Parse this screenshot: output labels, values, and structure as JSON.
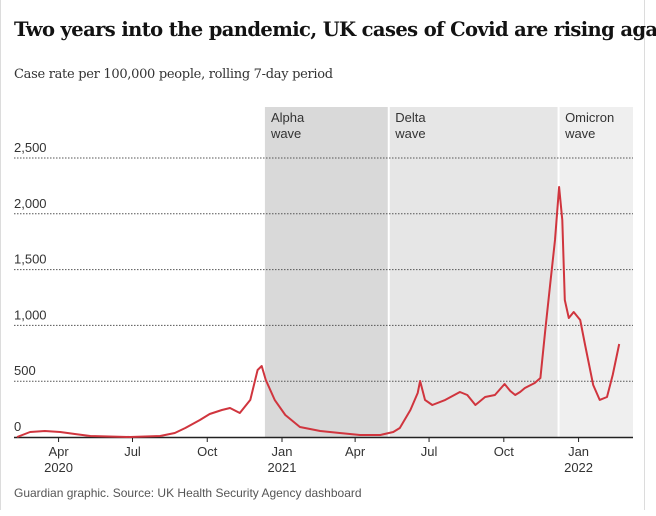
{
  "chart_data": {
    "type": "line",
    "title": "Two years into the pandemic, UK cases of Covid are rising again",
    "subtitle": "Case rate per 100,000 people, rolling 7-day period",
    "source": "Guardian graphic. Source: UK Health Security Agency dashboard",
    "x_unit": "days relative to 1 Jan 2021",
    "ylim": [
      0,
      2600
    ],
    "y_ticks": [
      {
        "value": 0,
        "label": "0"
      },
      {
        "value": 500,
        "label": "500"
      },
      {
        "value": 1000,
        "label": "1,000"
      },
      {
        "value": 1500,
        "label": "1,500"
      },
      {
        "value": 2000,
        "label": "2,000"
      },
      {
        "value": 2500,
        "label": "2,500"
      }
    ],
    "x_ticks": [
      {
        "day": -275,
        "label": "Apr",
        "year": "2020"
      },
      {
        "day": -184,
        "label": "Jul",
        "year": ""
      },
      {
        "day": -92,
        "label": "Oct",
        "year": ""
      },
      {
        "day": 0,
        "label": "Jan",
        "year": "2021"
      },
      {
        "day": 90,
        "label": "Apr",
        "year": ""
      },
      {
        "day": 181,
        "label": "Jul",
        "year": ""
      },
      {
        "day": 273,
        "label": "Oct",
        "year": ""
      },
      {
        "day": 365,
        "label": "Jan",
        "year": "2022"
      }
    ],
    "waves": [
      {
        "name": "Alpha",
        "sub": "wave",
        "start": -21,
        "end": 131,
        "color": "#d9d9d9"
      },
      {
        "name": "Delta",
        "sub": "wave",
        "start": 132,
        "end": 340,
        "color": "#e6e6e6"
      },
      {
        "name": "Omicron",
        "sub": "wave",
        "start": 341,
        "end": 432,
        "color": "#efefef"
      }
    ],
    "series": [
      {
        "name": "Case rate",
        "color": "#d0353e",
        "x": [
          -326,
          -310,
          -292,
          -273,
          -255,
          -236,
          -187,
          -150,
          -132,
          -119,
          -101,
          -89,
          -74,
          -64,
          -52,
          -39,
          -30,
          -25,
          -20,
          -9,
          4,
          22,
          47,
          71,
          96,
          121,
          137,
          145,
          158,
          167,
          170,
          176,
          185,
          201,
          219,
          228,
          238,
          250,
          262,
          274,
          281,
          287,
          293,
          299,
          311,
          318,
          324,
          330,
          336,
          341,
          345,
          348,
          353,
          359,
          367,
          373,
          383,
          391,
          400,
          407,
          415
        ],
        "values": [
          0,
          45,
          54,
          45,
          27,
          9,
          0,
          9,
          36,
          81,
          152,
          206,
          242,
          260,
          215,
          332,
          600,
          636,
          511,
          332,
          197,
          90,
          54,
          36,
          18,
          18,
          45,
          81,
          242,
          394,
          502,
          332,
          287,
          332,
          403,
          376,
          287,
          358,
          376,
          475,
          412,
          376,
          403,
          439,
          484,
          529,
          960,
          1362,
          1765,
          2240,
          1944,
          1228,
          1066,
          1120,
          1048,
          824,
          466,
          332,
          358,
          556,
          833
        ]
      }
    ]
  }
}
